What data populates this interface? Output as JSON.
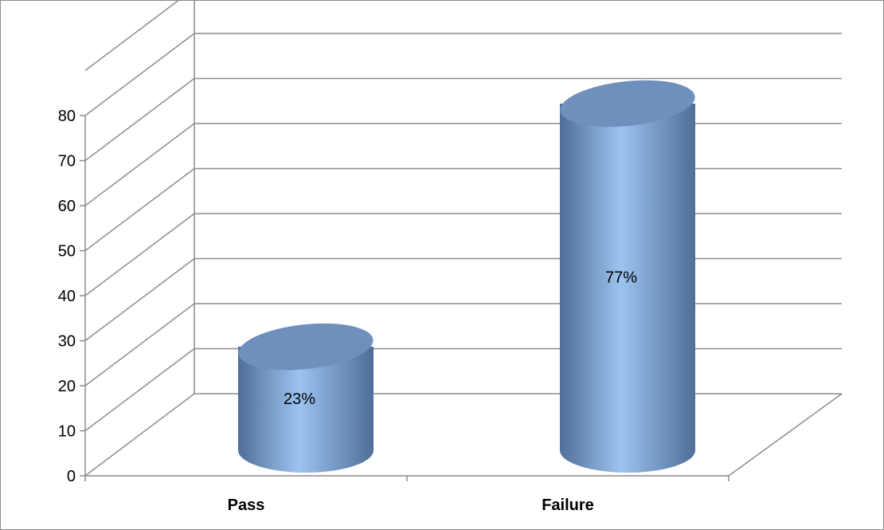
{
  "chart_data": {
    "type": "bar",
    "style": "3d-cylinder",
    "categories": [
      "Pass",
      "Failure"
    ],
    "values": [
      23,
      77
    ],
    "data_labels": [
      "23%",
      "77%"
    ],
    "title": "",
    "xlabel": "",
    "ylabel": "",
    "ylim": [
      0,
      80
    ],
    "yticks": [
      0,
      10,
      20,
      30,
      40,
      50,
      60,
      70,
      80
    ],
    "grid": true,
    "legend": "none",
    "colors": {
      "bar_light": "#9cc3f0",
      "bar_dark": "#4f6e98",
      "bar_top": "#6f8fbd",
      "grid": "#8c8c8c",
      "axis": "#8c8c8c"
    }
  }
}
